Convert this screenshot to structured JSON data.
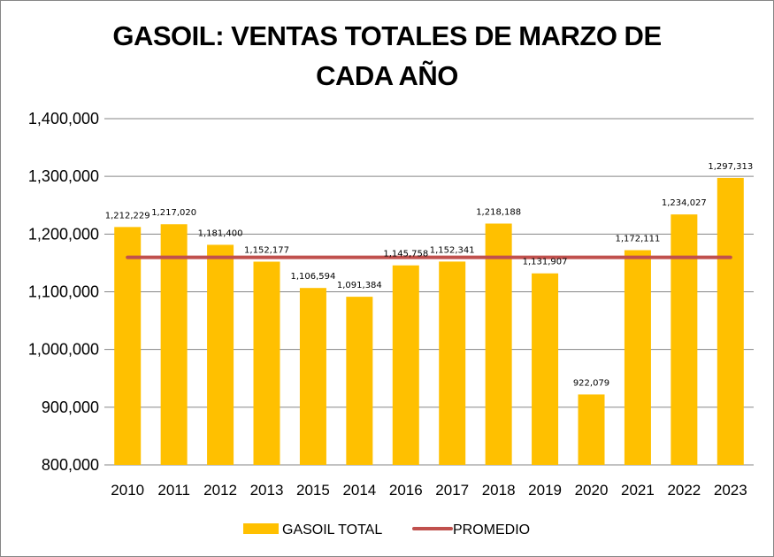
{
  "chart_data": {
    "type": "bar",
    "title": "GASOIL: VENTAS TOTALES DE MARZO DE CADA AÑO",
    "title_lines": [
      "GASOIL: VENTAS TOTALES DE MARZO DE",
      "CADA AÑO"
    ],
    "xlabel": "",
    "ylabel": "",
    "ylim": [
      800000,
      1400000
    ],
    "yticks": [
      800000,
      900000,
      1000000,
      1100000,
      1200000,
      1300000,
      1400000
    ],
    "ytick_labels": [
      "800,000",
      "900,000",
      "1,000,000",
      "1,100,000",
      "1,200,000",
      "1,300,000",
      "1,400,000"
    ],
    "grid": true,
    "categories": [
      "2010",
      "2011",
      "2012",
      "2013",
      "2015",
      "2014",
      "2016",
      "2017",
      "2018",
      "2019",
      "2020",
      "2021",
      "2022",
      "2023"
    ],
    "series": [
      {
        "name": "GASOIL TOTAL",
        "type": "bar",
        "color": "#FFC000",
        "values": [
          1212229,
          1217020,
          1181400,
          1152177,
          1106594,
          1091384,
          1145758,
          1152341,
          1218188,
          1131907,
          922079,
          1172111,
          1234027,
          1297313
        ],
        "data_labels": [
          "1,212,229",
          "1,217,020",
          "1,181,400",
          "1,152,177",
          "1,106,594",
          "1,091,384",
          "1,145,758",
          "1,152,341",
          "1,218,188",
          "1,131,907",
          "922,079",
          "1,172,111",
          "1,234,027",
          "1,297,313"
        ]
      },
      {
        "name": "PROMEDIO",
        "type": "line",
        "color": "#C0504D",
        "values": [
          1159652,
          1159652,
          1159652,
          1159652,
          1159652,
          1159652,
          1159652,
          1159652,
          1159652,
          1159652,
          1159652,
          1159652,
          1159652,
          1159652
        ]
      }
    ],
    "legend": {
      "position": "bottom",
      "entries": [
        "GASOIL TOTAL",
        "PROMEDIO"
      ]
    }
  }
}
